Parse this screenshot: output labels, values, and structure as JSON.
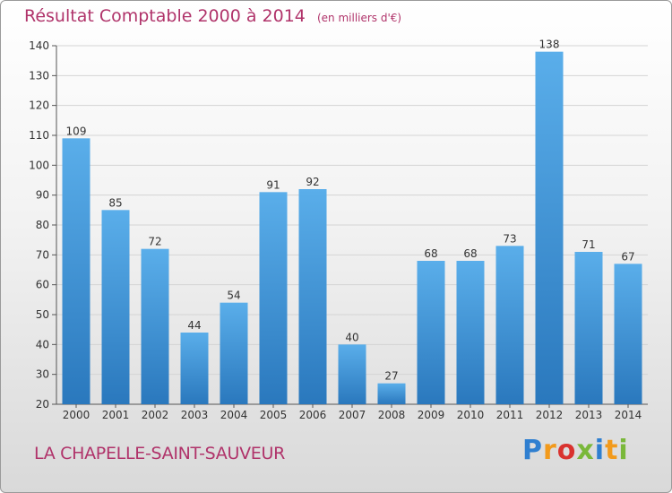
{
  "chart_data": {
    "type": "bar",
    "title": "Résultat Comptable 2000 à 2014",
    "subtitle": "(en milliers d'€)",
    "categories": [
      "2000",
      "2001",
      "2002",
      "2003",
      "2004",
      "2005",
      "2006",
      "2007",
      "2008",
      "2009",
      "2010",
      "2011",
      "2012",
      "2013",
      "2014"
    ],
    "values": [
      109,
      85,
      72,
      44,
      54,
      91,
      92,
      40,
      27,
      68,
      68,
      73,
      138,
      71,
      67
    ],
    "ylim": [
      20,
      140
    ],
    "yticks": [
      20,
      30,
      40,
      50,
      60,
      70,
      80,
      90,
      100,
      110,
      120,
      130,
      140
    ],
    "grid": true,
    "colors": {
      "bar_light": "#5aaeea",
      "bar_dark": "#2a78bd",
      "title": "#b0336a"
    }
  },
  "footer": {
    "commune": "LA CHAPELLE-SAINT-SAUVEUR"
  },
  "logo": {
    "letters": [
      "P",
      "r",
      "o",
      "x",
      "i",
      "t",
      "i"
    ],
    "colors": [
      "#2f7fd0",
      "#f29a1c",
      "#d9332f",
      "#7ab83a",
      "#2f7fd0",
      "#f29a1c",
      "#7ab83a"
    ]
  }
}
